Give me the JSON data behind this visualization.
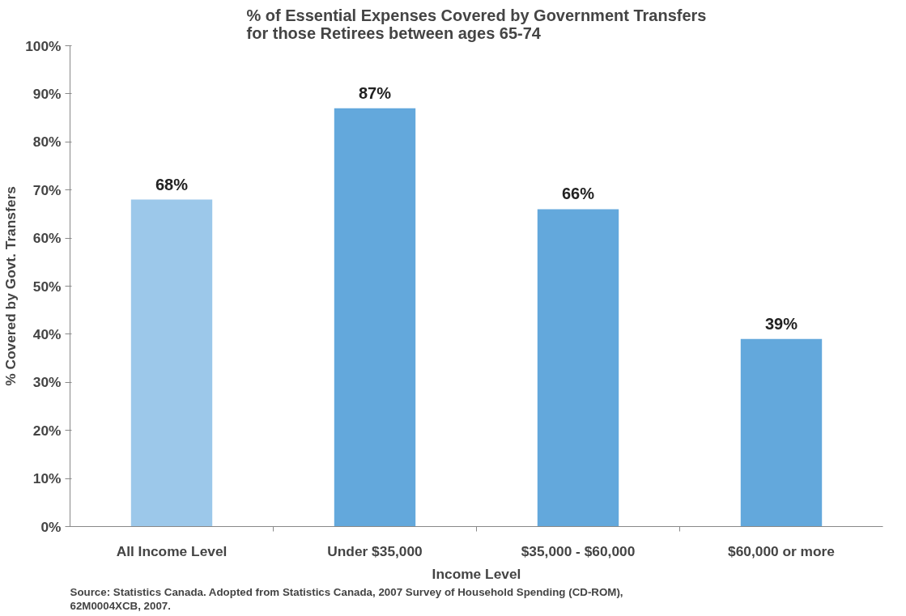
{
  "chart_data": {
    "type": "bar",
    "title": "% of Essential Expenses Covered by Government Transfers\nfor those Retirees between ages 65-74",
    "xlabel": "Income Level",
    "ylabel": "% Covered by Govt. Transfers",
    "categories": [
      "All Income Level",
      "Under $35,000",
      "$35,000 - $60,000",
      "$60,000 or more"
    ],
    "values": [
      68,
      87,
      66,
      39
    ],
    "value_labels": [
      "68%",
      "87%",
      "66%",
      "39%"
    ],
    "colors": [
      "#9cc8ea",
      "#63a8dc",
      "#63a8dc",
      "#63a8dc"
    ],
    "ylim": [
      0,
      100
    ],
    "yticks": [
      {
        "value": 0,
        "label": "0%"
      },
      {
        "value": 10,
        "label": "10%"
      },
      {
        "value": 20,
        "label": "20%"
      },
      {
        "value": 30,
        "label": "30%"
      },
      {
        "value": 40,
        "label": "40%"
      },
      {
        "value": 50,
        "label": "50%"
      },
      {
        "value": 60,
        "label": "60%"
      },
      {
        "value": 70,
        "label": "70%"
      },
      {
        "value": 80,
        "label": "80%"
      },
      {
        "value": 90,
        "label": "90%"
      },
      {
        "value": 100,
        "label": "100%"
      }
    ],
    "grid": false,
    "annotations": [
      "Source: Statistics Canada. Adopted from Statistics Canada, 2007 Survey of Household Spending (CD-ROM),\n62M0004XCB, 2007."
    ]
  }
}
